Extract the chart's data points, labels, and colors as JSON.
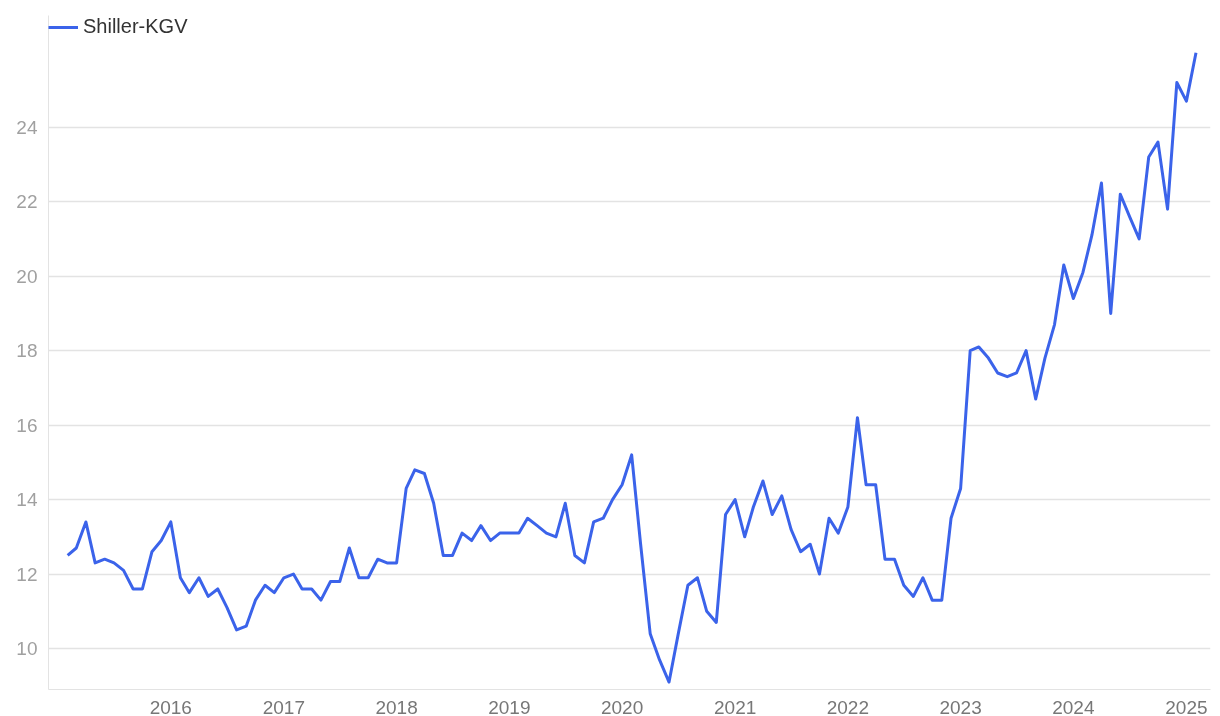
{
  "chart_data": {
    "type": "line",
    "legend": "top left",
    "grid": "y",
    "marker": "none",
    "line_style": "solid",
    "xlim": [
      "2014-12-01",
      "2025-03-20"
    ],
    "ylim": [
      8.9,
      27.0
    ],
    "xticks": [
      "2016",
      "2017",
      "2018",
      "2019",
      "2020",
      "2021",
      "2022",
      "2023",
      "2024",
      "2025"
    ],
    "yticks": [
      10,
      12,
      14,
      16,
      18,
      20,
      22,
      24
    ],
    "x": [
      "2015-02",
      "2015-03",
      "2015-04",
      "2015-05",
      "2015-06",
      "2015-07",
      "2015-08",
      "2015-09",
      "2015-10",
      "2015-11",
      "2015-12",
      "2016-01",
      "2016-02",
      "2016-03",
      "2016-04",
      "2016-05",
      "2016-06",
      "2016-07",
      "2016-08",
      "2016-09",
      "2016-10",
      "2016-11",
      "2016-12",
      "2017-01",
      "2017-02",
      "2017-03",
      "2017-04",
      "2017-05",
      "2017-06",
      "2017-07",
      "2017-08",
      "2017-09",
      "2017-10",
      "2017-11",
      "2017-12",
      "2018-01",
      "2018-02",
      "2018-03",
      "2018-04",
      "2018-05",
      "2018-06",
      "2018-07",
      "2018-08",
      "2018-09",
      "2018-10",
      "2018-11",
      "2018-12",
      "2019-01",
      "2019-02",
      "2019-03",
      "2019-04",
      "2019-05",
      "2019-06",
      "2019-07",
      "2019-08",
      "2019-09",
      "2019-10",
      "2019-11",
      "2019-12",
      "2020-01",
      "2020-02",
      "2020-03",
      "2020-04",
      "2020-05",
      "2020-06",
      "2020-07",
      "2020-08",
      "2020-09",
      "2020-10",
      "2020-11",
      "2020-12",
      "2021-01",
      "2021-02",
      "2021-03",
      "2021-04",
      "2021-05",
      "2021-06",
      "2021-07",
      "2021-08",
      "2021-09",
      "2021-10",
      "2021-11",
      "2021-12",
      "2022-01",
      "2022-02",
      "2022-03",
      "2022-04",
      "2022-05",
      "2022-06",
      "2022-07",
      "2022-08",
      "2022-09",
      "2022-10",
      "2022-11",
      "2022-12",
      "2023-01",
      "2023-02",
      "2023-03",
      "2023-04",
      "2023-05",
      "2023-06",
      "2023-07",
      "2023-08",
      "2023-09",
      "2023-10",
      "2023-11",
      "2023-12",
      "2024-01",
      "2024-02",
      "2024-03",
      "2024-04",
      "2024-05",
      "2024-06",
      "2024-07",
      "2024-08",
      "2024-09",
      "2024-10",
      "2024-11",
      "2024-12",
      "2025-01",
      "2025-02"
    ],
    "series": [
      {
        "name": "Shiller-KGV",
        "color": "#3b63ea",
        "values": [
          12.5,
          12.7,
          13.4,
          12.3,
          12.4,
          12.3,
          12.1,
          11.6,
          11.6,
          12.6,
          12.9,
          13.4,
          11.9,
          11.5,
          11.9,
          11.4,
          11.6,
          11.1,
          10.5,
          10.6,
          11.3,
          11.7,
          11.5,
          11.9,
          12.0,
          11.6,
          11.6,
          11.3,
          11.8,
          11.8,
          12.7,
          11.9,
          11.9,
          12.4,
          12.3,
          12.3,
          14.3,
          14.8,
          14.7,
          13.9,
          12.5,
          12.5,
          13.1,
          12.9,
          13.3,
          12.9,
          13.1,
          13.1,
          13.1,
          13.5,
          13.3,
          13.1,
          13.0,
          13.9,
          12.5,
          12.3,
          13.4,
          13.5,
          14.0,
          14.4,
          15.2,
          12.8,
          10.4,
          9.7,
          9.1,
          10.4,
          11.7,
          11.9,
          11.0,
          10.7,
          13.6,
          14.0,
          13.0,
          13.8,
          14.5,
          13.6,
          14.1,
          13.2,
          12.6,
          12.8,
          12.0,
          13.5,
          13.1,
          13.8,
          16.2,
          14.4,
          14.4,
          12.4,
          12.4,
          11.7,
          11.4,
          11.9,
          11.3,
          11.3,
          13.5,
          14.3,
          18.0,
          18.1,
          17.8,
          17.4,
          17.3,
          17.4,
          18.0,
          16.7,
          17.8,
          18.7,
          20.3,
          19.4,
          20.1,
          21.1,
          22.5,
          19.0,
          22.2,
          21.6,
          21.0,
          23.2,
          23.6,
          21.8,
          25.2,
          24.7,
          26.0
        ]
      }
    ]
  }
}
